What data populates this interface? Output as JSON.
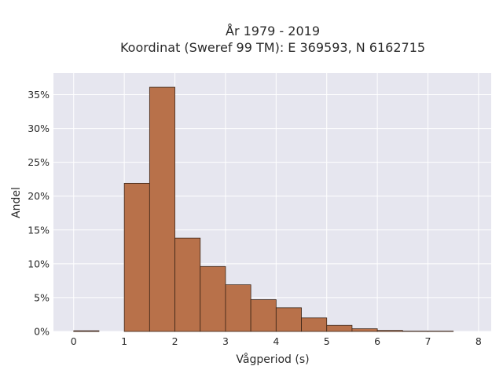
{
  "chart_data": {
    "type": "bar",
    "title_line1": "År 1979 - 2019",
    "title_line2": "Koordinat (Sweref 99 TM): E 369593, N 6162715",
    "xlabel": "Vågperiod (s)",
    "ylabel": "Andel",
    "bin_width": 0.5,
    "bins": [
      {
        "start": 0.0,
        "value": 0.1
      },
      {
        "start": 0.5,
        "value": 0.0
      },
      {
        "start": 1.0,
        "value": 21.9
      },
      {
        "start": 1.5,
        "value": 36.1
      },
      {
        "start": 2.0,
        "value": 13.8
      },
      {
        "start": 2.5,
        "value": 9.6
      },
      {
        "start": 3.0,
        "value": 6.9
      },
      {
        "start": 3.5,
        "value": 4.7
      },
      {
        "start": 4.0,
        "value": 3.5
      },
      {
        "start": 4.5,
        "value": 2.0
      },
      {
        "start": 5.0,
        "value": 0.9
      },
      {
        "start": 5.5,
        "value": 0.4
      },
      {
        "start": 6.0,
        "value": 0.15
      },
      {
        "start": 6.5,
        "value": 0.05
      },
      {
        "start": 7.0,
        "value": 0.05
      }
    ],
    "xlim": [
      -0.4,
      8.25
    ],
    "ylim": [
      0,
      38.2
    ],
    "x_ticks": [
      0,
      1,
      2,
      3,
      4,
      5,
      6,
      7,
      8
    ],
    "x_tick_labels": [
      "0",
      "1",
      "2",
      "3",
      "4",
      "5",
      "6",
      "7",
      "8"
    ],
    "y_ticks": [
      0,
      5,
      10,
      15,
      20,
      25,
      30,
      35
    ],
    "y_tick_labels": [
      "0%",
      "5%",
      "10%",
      "15%",
      "20%",
      "25%",
      "30%",
      "35%"
    ],
    "grid": true,
    "bar_color": "#b8714a",
    "bar_edge_color": "#3b2416",
    "plot_background": "#e6e6ef",
    "grid_color": "#ffffff"
  }
}
